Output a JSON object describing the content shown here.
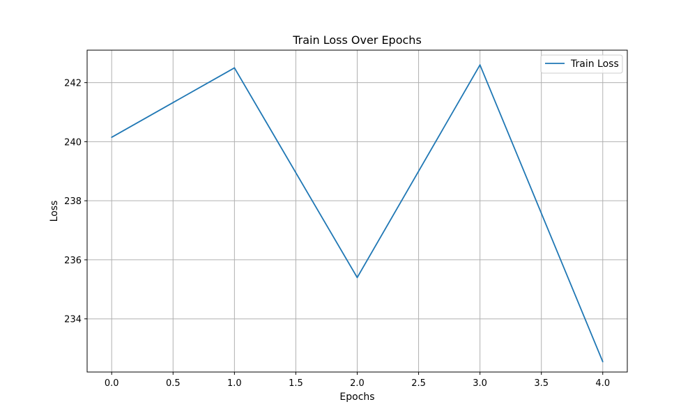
{
  "chart_data": {
    "type": "line",
    "title": "Train Loss Over Epochs",
    "xlabel": "Epochs",
    "ylabel": "Loss",
    "xlim": [
      -0.2,
      4.2
    ],
    "ylim": [
      232.2,
      243.1
    ],
    "xticks": [
      0.0,
      0.5,
      1.0,
      1.5,
      2.0,
      2.5,
      3.0,
      3.5,
      4.0
    ],
    "xtick_labels": [
      "0.0",
      "0.5",
      "1.0",
      "1.5",
      "2.0",
      "2.5",
      "3.0",
      "3.5",
      "4.0"
    ],
    "yticks": [
      234,
      236,
      238,
      240,
      242
    ],
    "ytick_labels": [
      "234",
      "236",
      "238",
      "240",
      "242"
    ],
    "grid": true,
    "legend_position": "top-right",
    "series": [
      {
        "name": "Train Loss",
        "color": "#1f77b4",
        "x": [
          0,
          1,
          2,
          3,
          4
        ],
        "y": [
          240.15,
          242.5,
          235.4,
          242.6,
          232.55
        ]
      }
    ]
  }
}
